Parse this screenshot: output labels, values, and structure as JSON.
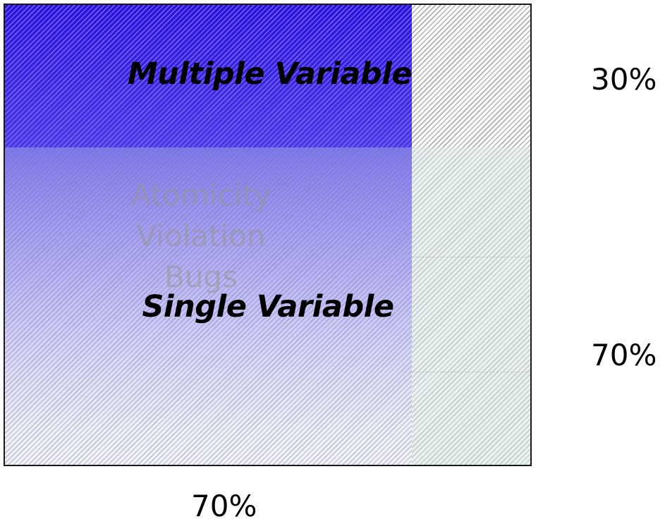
{
  "diagram": {
    "regions": {
      "multiple_variable": {
        "label": "Multiple Variable",
        "color": "#3a22e6"
      },
      "single_variable": {
        "label": "Single Variable",
        "color": "#aaa6f3"
      },
      "atomicity_violation": {
        "lines": [
          "Atomicity",
          "Violation",
          "Bugs"
        ]
      }
    },
    "percentages": {
      "top_right": "30%",
      "middle_right": "70%",
      "bottom": "70%"
    }
  }
}
